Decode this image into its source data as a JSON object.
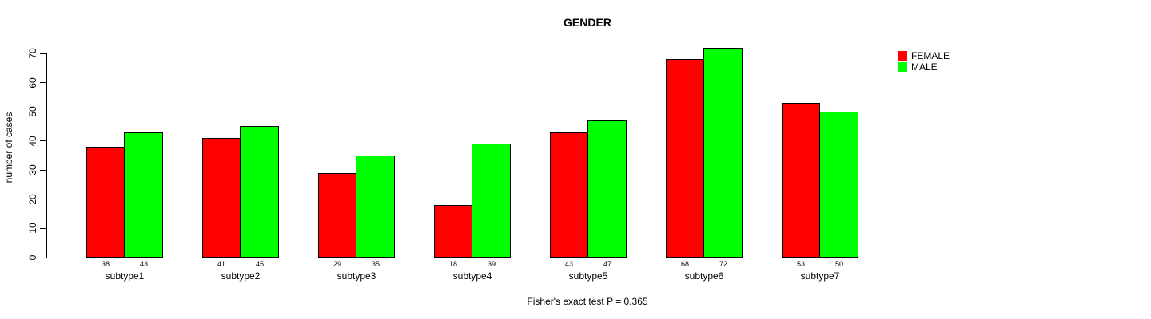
{
  "chart_data": {
    "type": "bar",
    "title": "GENDER",
    "xlabel": "",
    "ylabel": "number of cases",
    "footnote": "Fisher's exact test P = 0.365",
    "categories": [
      "subtype1",
      "subtype2",
      "subtype3",
      "subtype4",
      "subtype5",
      "subtype6",
      "subtype7"
    ],
    "series": [
      {
        "name": "FEMALE",
        "color": "#FF0000",
        "values": [
          38,
          41,
          29,
          18,
          43,
          68,
          53
        ]
      },
      {
        "name": "MALE",
        "color": "#00FF00",
        "values": [
          43,
          45,
          35,
          39,
          47,
          72,
          50
        ]
      }
    ],
    "yticks": [
      0,
      10,
      20,
      30,
      40,
      50,
      60,
      70
    ],
    "ylim": [
      0,
      70
    ],
    "bar_value_labels_shown": true,
    "legend_position": "top-right-outside",
    "grid": false,
    "background_color": "#FFFFFF",
    "axis_color": "#000000"
  }
}
